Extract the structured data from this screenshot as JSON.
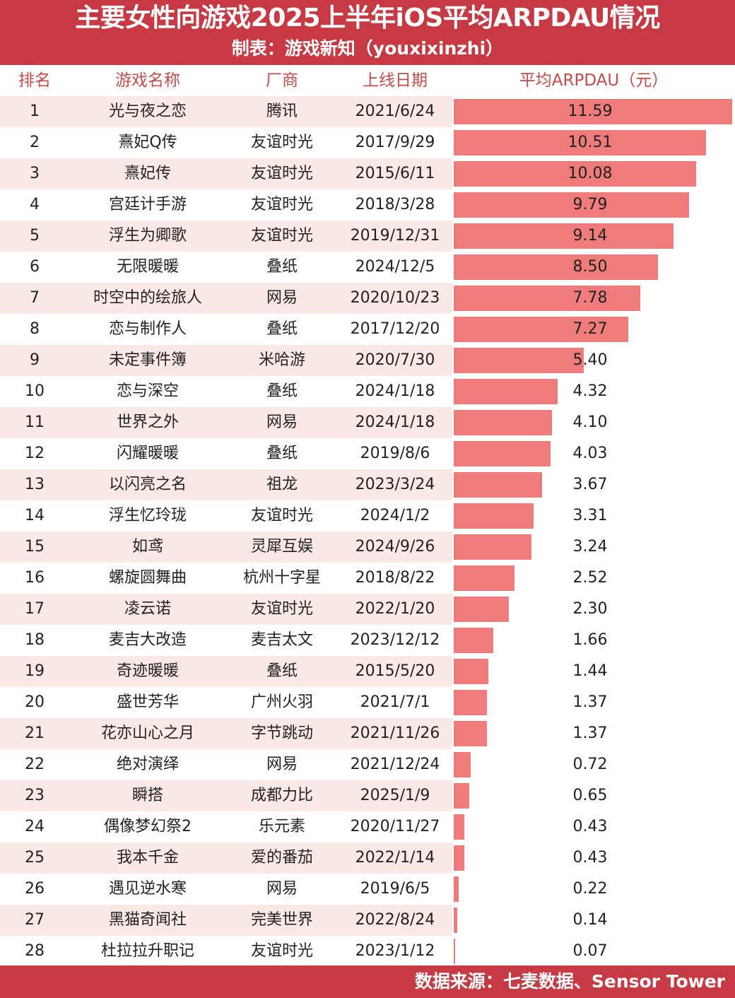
{
  "header": {
    "title": "主要女性向游戏2025上半年iOS平均ARPDAU情况",
    "subtitle": "制表：游戏新知（youxixinzhi）"
  },
  "columns": {
    "rank": "排名",
    "name": "游戏名称",
    "vendor": "厂商",
    "date": "上线日期",
    "value": "平均ARPDAU（元）"
  },
  "footer": {
    "source": "数据来源：七麦数据、Sensor Tower"
  },
  "colors": {
    "header_bg": "#c73a44",
    "bar": "#ef7b7b",
    "alt_row": "#fbe9e7",
    "header_text": "#c84a4a"
  },
  "chart_data": {
    "type": "table",
    "title": "主要女性向游戏2025上半年iOS平均ARPDAU情况",
    "value_label": "平均ARPDAU（元）",
    "xlim": [
      0,
      11.59
    ],
    "rows": [
      {
        "rank": "1",
        "name": "光与夜之恋",
        "vendor": "腾讯",
        "date": "2021/6/24",
        "value": 11.59,
        "label": "11.59"
      },
      {
        "rank": "2",
        "name": "熹妃Q传",
        "vendor": "友谊时光",
        "date": "2017/9/29",
        "value": 10.51,
        "label": "10.51"
      },
      {
        "rank": "3",
        "name": "熹妃传",
        "vendor": "友谊时光",
        "date": "2015/6/11",
        "value": 10.08,
        "label": "10.08"
      },
      {
        "rank": "4",
        "name": "宫廷计手游",
        "vendor": "友谊时光",
        "date": "2018/3/28",
        "value": 9.79,
        "label": "9.79"
      },
      {
        "rank": "5",
        "name": "浮生为卿歌",
        "vendor": "友谊时光",
        "date": "2019/12/31",
        "value": 9.14,
        "label": "9.14"
      },
      {
        "rank": "6",
        "name": "无限暖暖",
        "vendor": "叠纸",
        "date": "2024/12/5",
        "value": 8.5,
        "label": "8.50"
      },
      {
        "rank": "7",
        "name": "时空中的绘旅人",
        "vendor": "网易",
        "date": "2020/10/23",
        "value": 7.78,
        "label": "7.78"
      },
      {
        "rank": "8",
        "name": "恋与制作人",
        "vendor": "叠纸",
        "date": "2017/12/20",
        "value": 7.27,
        "label": "7.27"
      },
      {
        "rank": "9",
        "name": "未定事件簿",
        "vendor": "米哈游",
        "date": "2020/7/30",
        "value": 5.4,
        "label": "5.40"
      },
      {
        "rank": "10",
        "name": "恋与深空",
        "vendor": "叠纸",
        "date": "2024/1/18",
        "value": 4.32,
        "label": "4.32"
      },
      {
        "rank": "11",
        "name": "世界之外",
        "vendor": "网易",
        "date": "2024/1/18",
        "value": 4.1,
        "label": "4.10"
      },
      {
        "rank": "12",
        "name": "闪耀暖暖",
        "vendor": "叠纸",
        "date": "2019/8/6",
        "value": 4.03,
        "label": "4.03"
      },
      {
        "rank": "13",
        "name": "以闪亮之名",
        "vendor": "祖龙",
        "date": "2023/3/24",
        "value": 3.67,
        "label": "3.67"
      },
      {
        "rank": "14",
        "name": "浮生忆玲珑",
        "vendor": "友谊时光",
        "date": "2024/1/2",
        "value": 3.31,
        "label": "3.31"
      },
      {
        "rank": "15",
        "name": "如鸢",
        "vendor": "灵犀互娱",
        "date": "2024/9/26",
        "value": 3.24,
        "label": "3.24"
      },
      {
        "rank": "16",
        "name": "螺旋圆舞曲",
        "vendor": "杭州十字星",
        "date": "2018/8/22",
        "value": 2.52,
        "label": "2.52"
      },
      {
        "rank": "17",
        "name": "凌云诺",
        "vendor": "友谊时光",
        "date": "2022/1/20",
        "value": 2.3,
        "label": "2.30"
      },
      {
        "rank": "18",
        "name": "麦吉大改造",
        "vendor": "麦吉太文",
        "date": "2023/12/12",
        "value": 1.66,
        "label": "1.66"
      },
      {
        "rank": "19",
        "name": "奇迹暖暖",
        "vendor": "叠纸",
        "date": "2015/5/20",
        "value": 1.44,
        "label": "1.44"
      },
      {
        "rank": "20",
        "name": "盛世芳华",
        "vendor": "广州火羽",
        "date": "2021/7/1",
        "value": 1.37,
        "label": "1.37"
      },
      {
        "rank": "21",
        "name": "花亦山心之月",
        "vendor": "字节跳动",
        "date": "2021/11/26",
        "value": 1.37,
        "label": "1.37"
      },
      {
        "rank": "22",
        "name": "绝对演绎",
        "vendor": "网易",
        "date": "2021/12/24",
        "value": 0.72,
        "label": "0.72"
      },
      {
        "rank": "23",
        "name": "瞬搭",
        "vendor": "成都力比",
        "date": "2025/1/9",
        "value": 0.65,
        "label": "0.65"
      },
      {
        "rank": "24",
        "name": "偶像梦幻祭2",
        "vendor": "乐元素",
        "date": "2020/11/27",
        "value": 0.43,
        "label": "0.43"
      },
      {
        "rank": "25",
        "name": "我本千金",
        "vendor": "爱的番茄",
        "date": "2022/1/14",
        "value": 0.43,
        "label": "0.43"
      },
      {
        "rank": "26",
        "name": "遇见逆水寒",
        "vendor": "网易",
        "date": "2019/6/5",
        "value": 0.22,
        "label": "0.22"
      },
      {
        "rank": "27",
        "name": "黑猫奇闻社",
        "vendor": "完美世界",
        "date": "2022/8/24",
        "value": 0.14,
        "label": "0.14"
      },
      {
        "rank": "28",
        "name": "杜拉拉升职记",
        "vendor": "友谊时光",
        "date": "2023/1/12",
        "value": 0.07,
        "label": "0.07"
      }
    ]
  }
}
